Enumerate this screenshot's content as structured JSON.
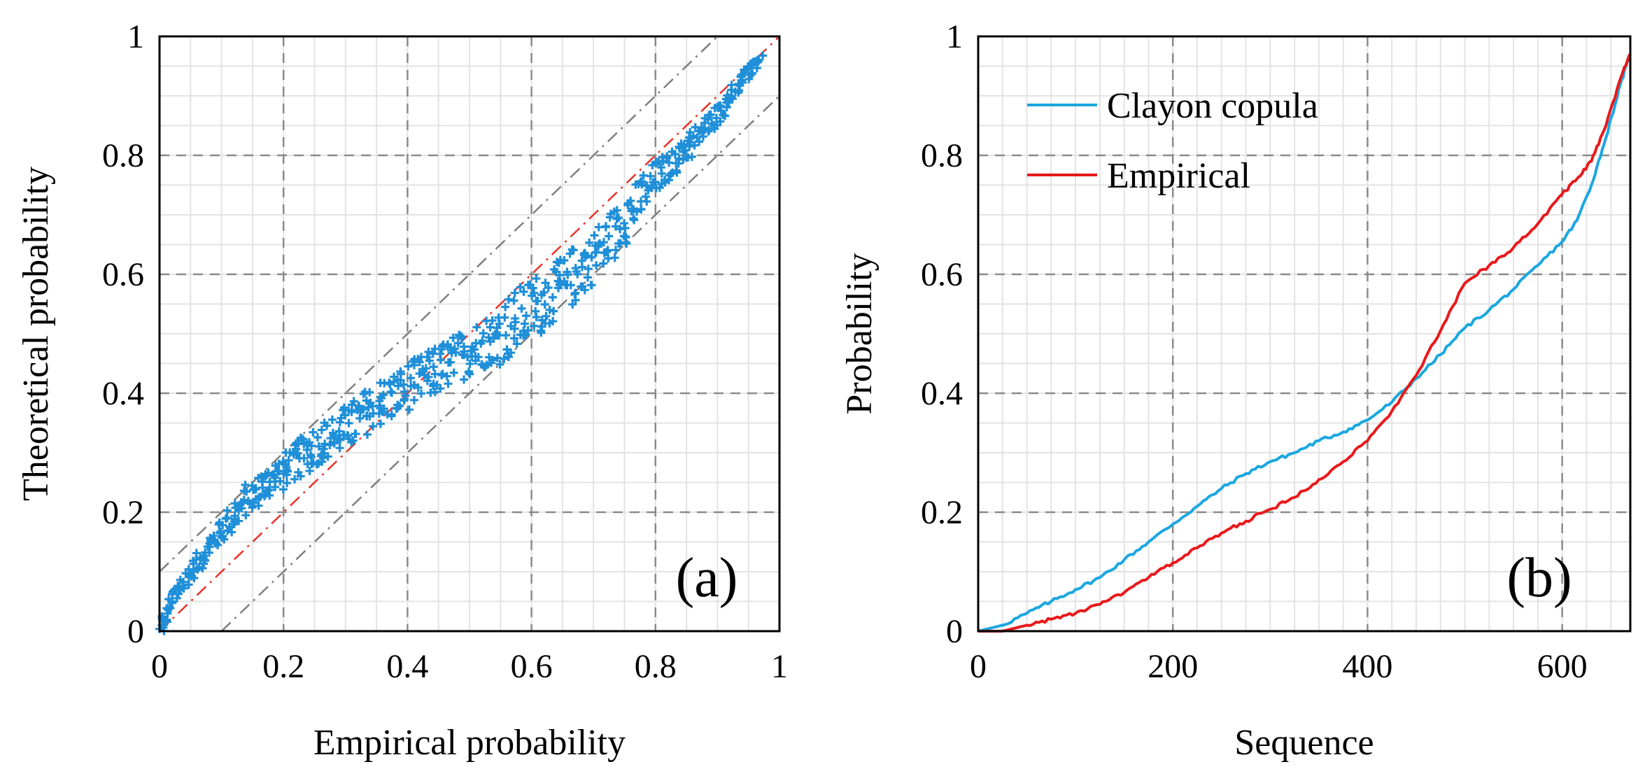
{
  "chart_data": [
    {
      "type": "scatter",
      "panel_label": "(a)",
      "xlabel": "Empirical probability",
      "ylabel": "Theoretical probability",
      "xlim": [
        0,
        1
      ],
      "ylim": [
        0,
        1
      ],
      "xticks": [
        "0",
        "0.2",
        "0.4",
        "0.6",
        "0.8",
        "1"
      ],
      "yticks": [
        "0",
        "0.2",
        "0.4",
        "0.6",
        "0.8",
        "1"
      ],
      "grid": true,
      "marker": "+",
      "point_color": "#1f8fd8",
      "reference_lines": [
        {
          "kind": "diagonal",
          "color": "#e8332a",
          "style": "dash-dot",
          "points": [
            [
              0,
              0
            ],
            [
              1,
              1
            ]
          ]
        },
        {
          "kind": "upper-bound",
          "color": "#7f7f7f",
          "style": "dash-dot",
          "points": [
            [
              0,
              0.1
            ],
            [
              0.9,
              1
            ]
          ]
        },
        {
          "kind": "lower-bound",
          "color": "#7f7f7f",
          "style": "dash-dot",
          "points": [
            [
              0.1,
              0
            ],
            [
              1,
              0.9
            ]
          ]
        }
      ],
      "trend_points": [
        [
          0.0,
          0.0
        ],
        [
          0.02,
          0.05
        ],
        [
          0.05,
          0.1
        ],
        [
          0.1,
          0.17
        ],
        [
          0.15,
          0.23
        ],
        [
          0.2,
          0.27
        ],
        [
          0.25,
          0.31
        ],
        [
          0.3,
          0.34
        ],
        [
          0.35,
          0.38
        ],
        [
          0.4,
          0.41
        ],
        [
          0.45,
          0.44
        ],
        [
          0.5,
          0.47
        ],
        [
          0.55,
          0.5
        ],
        [
          0.6,
          0.54
        ],
        [
          0.65,
          0.58
        ],
        [
          0.7,
          0.63
        ],
        [
          0.75,
          0.69
        ],
        [
          0.8,
          0.76
        ],
        [
          0.85,
          0.81
        ],
        [
          0.9,
          0.87
        ],
        [
          0.95,
          0.94
        ],
        [
          0.98,
          0.98
        ]
      ],
      "n_points": 670
    },
    {
      "type": "line",
      "panel_label": "(b)",
      "xlabel": "Sequence",
      "ylabel": "Probability",
      "xlim": [
        0,
        670
      ],
      "ylim": [
        0,
        1
      ],
      "xticks": [
        "0",
        "200",
        "400",
        "600"
      ],
      "yticks": [
        "0",
        "0.2",
        "0.4",
        "0.6",
        "0.8",
        "1"
      ],
      "grid": true,
      "legend": "top-left",
      "series": [
        {
          "name": "Clayon copula",
          "color": "#1aa7e0",
          "points": [
            [
              0,
              0.0
            ],
            [
              25,
              0.01
            ],
            [
              50,
              0.03
            ],
            [
              75,
              0.05
            ],
            [
              100,
              0.07
            ],
            [
              125,
              0.09
            ],
            [
              150,
              0.12
            ],
            [
              175,
              0.15
            ],
            [
              200,
              0.18
            ],
            [
              225,
              0.21
            ],
            [
              250,
              0.24
            ],
            [
              275,
              0.265
            ],
            [
              300,
              0.285
            ],
            [
              325,
              0.3
            ],
            [
              350,
              0.32
            ],
            [
              375,
              0.335
            ],
            [
              400,
              0.355
            ],
            [
              425,
              0.385
            ],
            [
              450,
              0.425
            ],
            [
              475,
              0.465
            ],
            [
              500,
              0.51
            ],
            [
              525,
              0.54
            ],
            [
              550,
              0.575
            ],
            [
              575,
              0.615
            ],
            [
              600,
              0.655
            ],
            [
              615,
              0.69
            ],
            [
              630,
              0.75
            ],
            [
              645,
              0.83
            ],
            [
              660,
              0.92
            ],
            [
              670,
              0.97
            ]
          ]
        },
        {
          "name": "Empirical",
          "color": "#e8191b",
          "points": [
            [
              0,
              0.0
            ],
            [
              25,
              0.0
            ],
            [
              50,
              0.01
            ],
            [
              75,
              0.02
            ],
            [
              100,
              0.03
            ],
            [
              125,
              0.045
            ],
            [
              150,
              0.065
            ],
            [
              175,
              0.09
            ],
            [
              200,
              0.115
            ],
            [
              225,
              0.14
            ],
            [
              250,
              0.165
            ],
            [
              275,
              0.185
            ],
            [
              300,
              0.205
            ],
            [
              325,
              0.225
            ],
            [
              350,
              0.255
            ],
            [
              375,
              0.285
            ],
            [
              400,
              0.32
            ],
            [
              425,
              0.37
            ],
            [
              450,
              0.43
            ],
            [
              475,
              0.505
            ],
            [
              500,
              0.585
            ],
            [
              525,
              0.615
            ],
            [
              550,
              0.645
            ],
            [
              575,
              0.685
            ],
            [
              600,
              0.735
            ],
            [
              615,
              0.76
            ],
            [
              630,
              0.79
            ],
            [
              645,
              0.85
            ],
            [
              660,
              0.93
            ],
            [
              670,
              0.97
            ]
          ]
        }
      ]
    }
  ]
}
